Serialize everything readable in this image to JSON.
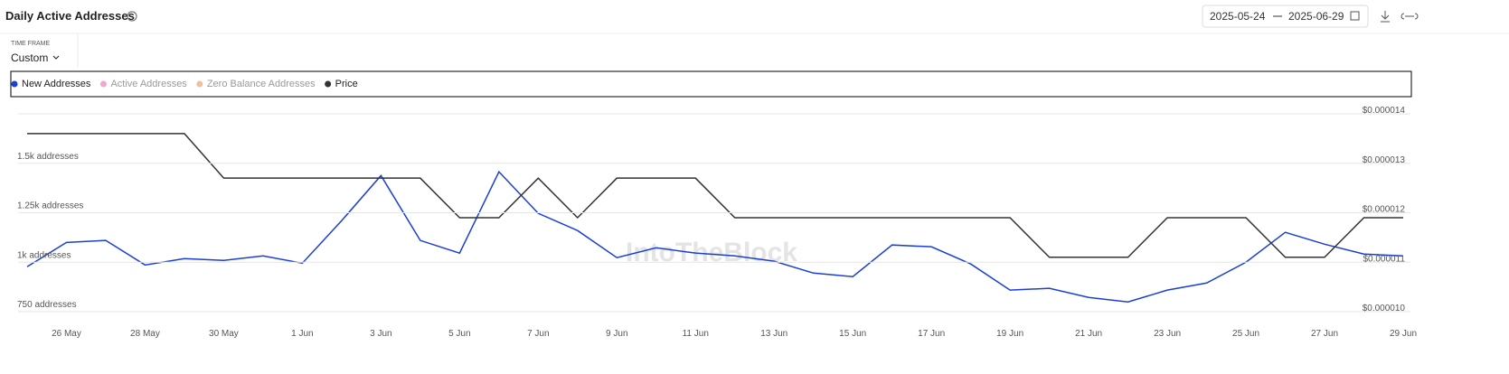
{
  "header": {
    "title": "Daily Active Addresses",
    "date_from": "2025-05-24",
    "date_to": "2025-06-29",
    "time_frame_label": "TIME FRAME",
    "time_frame": "Custom"
  },
  "watermark": "IntoTheBlock",
  "chart_data": {
    "type": "line",
    "categories": [
      null,
      "26 May",
      null,
      "28 May",
      null,
      "30 May",
      null,
      "1 Jun",
      null,
      "3 Jun",
      null,
      "5 Jun",
      null,
      "7 Jun",
      null,
      "9 Jun",
      null,
      "11 Jun",
      null,
      "13 Jun",
      null,
      "15 Jun",
      null,
      "17 Jun",
      null,
      "19 Jun",
      null,
      "21 Jun",
      null,
      "23 Jun",
      null,
      "25 Jun",
      null,
      "27 Jun",
      null,
      "29 Jun"
    ],
    "series": [
      {
        "name": "New Addresses",
        "color": "#1a3fd6",
        "visible": true,
        "values": [
          977,
          1100,
          1110,
          986,
          1018,
          1009,
          1032,
          995,
          1210,
          1438,
          1110,
          1046,
          1457,
          1247,
          1160,
          1023,
          1073,
          1046,
          1032,
          1005,
          945,
          927,
          1087,
          1078,
          991,
          859,
          868,
          822,
          799,
          859,
          895,
          1000,
          1151,
          1091,
          1041,
          1032
        ]
      },
      {
        "name": "Active Addresses",
        "color": "#f2a6d0",
        "visible": false
      },
      {
        "name": "Zero Balance Addresses",
        "color": "#f0c09a",
        "visible": false
      },
      {
        "name": "Price",
        "color": "#333333",
        "visible": true,
        "axis": "y2",
        "values": [
          1.36e-05,
          1.36e-05,
          1.36e-05,
          1.36e-05,
          1.36e-05,
          1.27e-05,
          1.27e-05,
          1.27e-05,
          1.27e-05,
          1.27e-05,
          1.27e-05,
          1.19e-05,
          1.19e-05,
          1.27e-05,
          1.19e-05,
          1.27e-05,
          1.27e-05,
          1.27e-05,
          1.19e-05,
          1.19e-05,
          1.19e-05,
          1.19e-05,
          1.19e-05,
          1.19e-05,
          1.19e-05,
          1.19e-05,
          1.11e-05,
          1.11e-05,
          1.11e-05,
          1.19e-05,
          1.19e-05,
          1.19e-05,
          1.11e-05,
          1.11e-05,
          1.19e-05,
          1.19e-05
        ]
      }
    ],
    "ylim": [
      750,
      1750
    ],
    "yticks": [
      {
        "value": 750,
        "label": "750 addresses"
      },
      {
        "value": 1000,
        "label": "1k addresses"
      },
      {
        "value": 1250,
        "label": "1.25k addresses"
      },
      {
        "value": 1500,
        "label": "1.5k addresses"
      }
    ],
    "y2lim": [
      1e-05,
      1.4e-05
    ],
    "y2ticks": [
      {
        "value": 1e-05,
        "label": "$0.000010"
      },
      {
        "value": 1.1e-05,
        "label": "$0.000011"
      },
      {
        "value": 1.2e-05,
        "label": "$0.000012"
      },
      {
        "value": 1.3e-05,
        "label": "$0.000013"
      },
      {
        "value": 1.4e-05,
        "label": "$0.000014"
      }
    ],
    "grid": true
  }
}
